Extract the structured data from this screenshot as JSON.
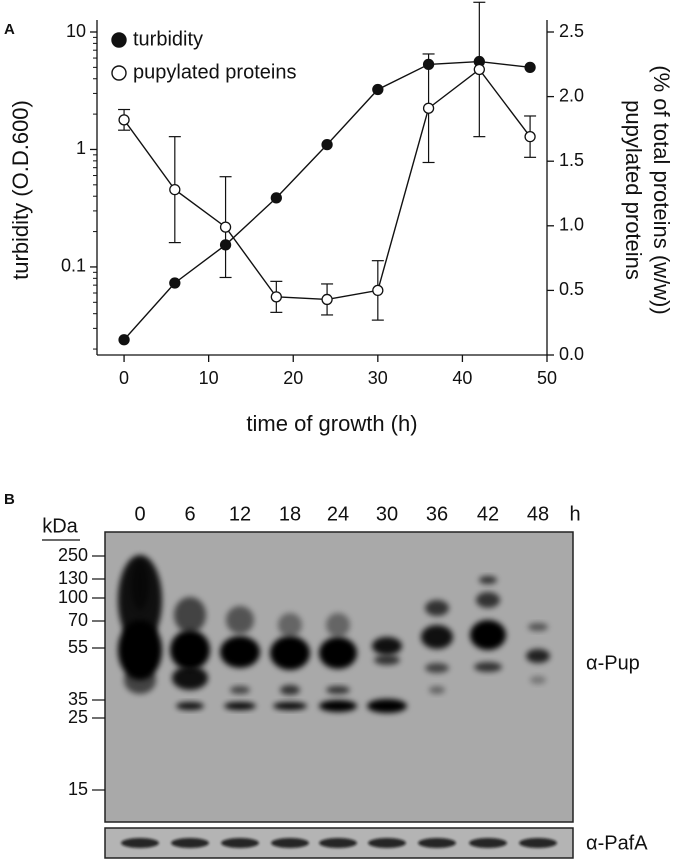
{
  "panel_labels": [
    "A",
    "B"
  ],
  "chart_data": {
    "type": "line",
    "xlabel": "time of growth (h)",
    "ylabel": "turbidity (O.D.600)",
    "y2label": [
      "pupylated proteins",
      "(% of total proteins (w/w))"
    ],
    "x": [
      0,
      6,
      12,
      18,
      24,
      30,
      36,
      42,
      48
    ],
    "xlim": [
      -3.2,
      50
    ],
    "xticks": [
      0,
      10,
      20,
      30,
      40,
      50
    ],
    "ylim": [
      0.0178,
      10
    ],
    "yticks": [
      0.1,
      1,
      10
    ],
    "yscale": "log",
    "y2lim": [
      0,
      2.5
    ],
    "y2ticks": [
      {
        "value": 0,
        "label": "0.0"
      },
      0.5,
      {
        "value": 1,
        "label": "1.0"
      },
      1.5,
      {
        "value": 2,
        "label": "2.0"
      },
      2.5
    ],
    "legend": "upper left",
    "series": [
      {
        "name": "turbidity",
        "color": "#111111",
        "marker": "filled",
        "values": [
          0.024,
          0.073,
          0.154,
          0.387,
          1.1,
          3.24,
          5.3,
          5.6,
          5.0
        ]
      },
      {
        "name": "pupylated proteins",
        "color": "#111111",
        "marker": "open",
        "axis": "y2",
        "values": [
          1.82,
          1.28,
          0.99,
          0.45,
          0.43,
          0.5,
          1.91,
          2.21,
          1.69
        ],
        "errors": [
          0.08,
          0.41,
          0.39,
          0.12,
          0.12,
          0.23,
          0.42,
          0.52,
          0.16
        ]
      }
    ]
  },
  "blot": {
    "unit": "kDa",
    "lanes": [
      "0",
      "6",
      "12",
      "18",
      "24",
      "30",
      "36",
      "42",
      "48"
    ],
    "lane_unit": "h",
    "markers": [
      "250",
      "130",
      "100",
      "70",
      "55",
      "35",
      "25",
      "15"
    ],
    "antibodies": [
      "α-Pup",
      "α-PafA"
    ]
  }
}
